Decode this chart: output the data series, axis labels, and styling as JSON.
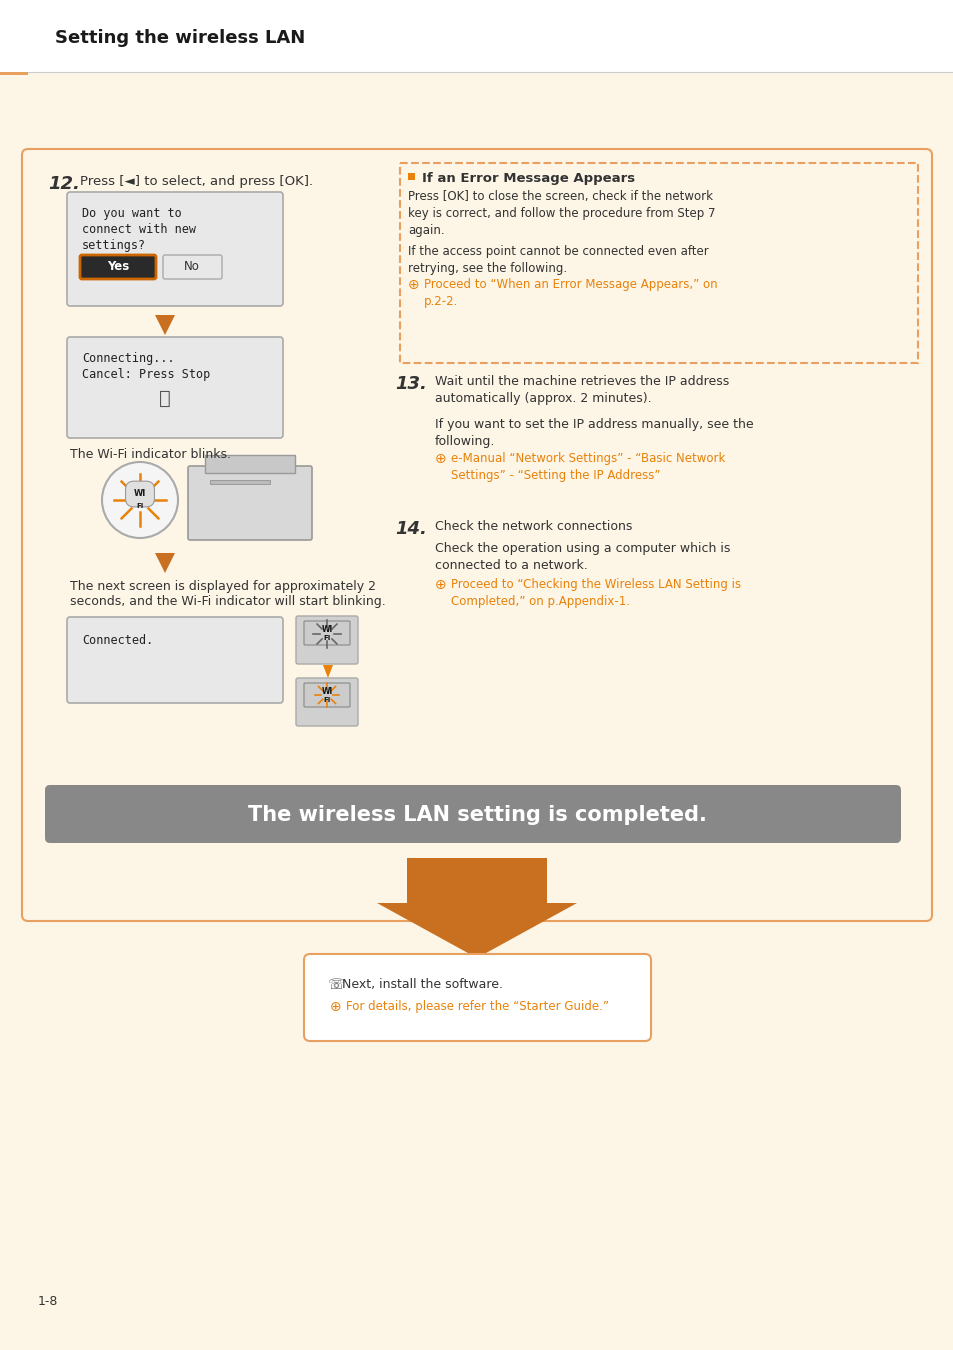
{
  "page_bg": "#fdf5e6",
  "header_bar_color": "#e8a060",
  "header_bg": "#ffffff",
  "header_title": "Setting the wireless LAN",
  "header_title_color": "#1a1a1a",
  "header_line_color": "#cccccc",
  "main_box_border": "#e8a060",
  "step12_num": "12.",
  "step12_text": "Press [◄] to select, and press [OK].",
  "lcd1_lines": [
    "Do you want to",
    "connect with new",
    "settings?"
  ],
  "lcd1_yes": "Yes",
  "lcd1_no": "No",
  "lcd2_lines": [
    "Connecting...",
    "Cancel: Press Stop"
  ],
  "wifi_blinks_text": "The Wi-Fi indicator blinks.",
  "next_screen_text": "The next screen is displayed for approximately 2\nseconds, and the Wi-Fi indicator will start blinking.",
  "connected_text": "Connected.",
  "completed_bar_bg": "#888888",
  "completed_bar_text": "The wireless LAN setting is completed.",
  "completed_bar_text_color": "#ffffff",
  "error_box_border": "#e8a060",
  "error_title": "If an Error Message Appears",
  "error_p1": "Press [OK] to close the screen, check if the network\nkey is correct, and follow the procedure from Step 7\nagain.",
  "error_p2": "If the access point cannot be connected even after\nretrying, see the following.",
  "error_link": "Proceed to “When an Error Message Appears,” on\np.2-2.",
  "step13_num": "13.",
  "step13_p1": "Wait until the machine retrieves the IP address\nautomatically (approx. 2 minutes).",
  "step13_p2": "If you want to set the IP address manually, see the\nfollowing.",
  "step13_link": "e-Manual “Network Settings” - “Basic Network\nSettings” - “Setting the IP Address”",
  "step14_num": "14.",
  "step14_p1": "Check the network connections",
  "step14_p2": "Check the operation using a computer which is\nconnected to a network.",
  "step14_link": "Proceed to “Checking the Wireless LAN Setting is\nCompleted,” on p.Appendix-1.",
  "bottom_arrow_color": "#c87020",
  "bottom_box_border": "#e8a060",
  "bottom_line1": "Next, install the software.",
  "bottom_line2": "For details, please refer the “Starter Guide.”",
  "orange_color": "#e8820a",
  "page_num": "1-8",
  "text_color": "#333333",
  "arrow_color": "#c87020"
}
